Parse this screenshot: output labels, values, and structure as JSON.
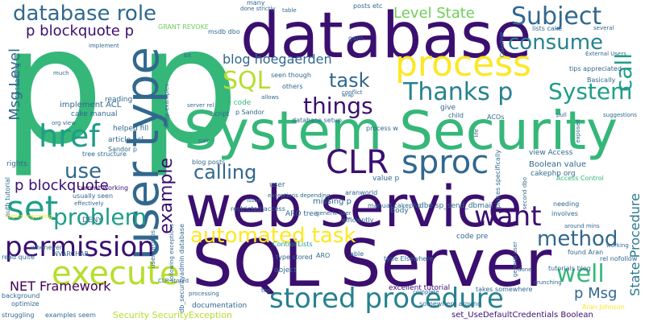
{
  "words": {
    "p_big": "p",
    "p_big2": "p",
    "database": "database",
    "system_security": "System Security",
    "web_service": "web service",
    "sql_server": "SQL Server",
    "process": "process",
    "user_type": "user type",
    "set": "set",
    "href": "href",
    "clr": "CLR",
    "sproc": "sproc",
    "execute": "execute",
    "stored_procedure": "stored procedure",
    "permission": "permission",
    "want": "want",
    "database_role": "database role",
    "subject": "Subject",
    "consume": "consume",
    "things": "things",
    "thanks_p": "Thanks p",
    "task": "task",
    "sql": "SQL",
    "system": "System",
    "call": "call",
    "automated_task": "automated task",
    "calling": "calling",
    "method": "method",
    "well": "well",
    "problem": "problem",
    "net_framework": "NET Framework",
    "use": "use",
    "p_blockquote": "p blockquote",
    "p_blockquote2": "p blockquote p",
    "example": "example",
    "level_state": "Level State",
    "blog_hoegaerden": "blog hoegaerden",
    "msg_level": "Msg Level",
    "p_msg": "p Msg",
    "state_procedure": "State Procedure",
    "security_exception": "Security SecurityException",
    "boolean_value": "Boolean value",
    "view_access": "view Access",
    "excellent_tutorial": "excellent tutorial",
    "cakephp_org": "cakephp org",
    "implement_acl": "implement ACL",
    "cake_manual": "cake manual",
    "tree_structure": "tree structure",
    "current_working": "current working",
    "aro_tree": "ARO tree",
    "missing_p": "missing p",
    "value_p": "value p",
    "code_pre": "code pre",
    "type_stored": "type stored",
    "access_control": "Access Control",
    "found_aran": "found Aran",
    "aran_johnson": "Aran Johnson",
    "set_use_default": "set_UseDefaultCredentials Boolean",
    "documentation": "documentation",
    "examples_seem": "examples seem",
    "nvarchar": "NVARCHAR",
    "deny": "DENY",
    "rights": "rights",
    "usually_seen": "usually seen",
    "whenever": "whenever",
    "read_quite": "read quite",
    "background": "background",
    "optimize": "optimize",
    "struggling": "struggling",
    "effectively": "effectively",
    "user_groups": "user groups",
    "blog_posts": "blog posts",
    "helped_fill": "helped fill",
    "article_acl": "article acl",
    "sandor_p": "Sandor p",
    "reading": "reading",
    "pre_code": "pre code",
    "script": "script",
    "p_sandor": "p Sandor",
    "database_setup": "database setup",
    "process_w": "process w",
    "give": "give",
    "child": "child",
    "acos": "ACOs",
    "pull": "pull",
    "suggestions": "suggestions",
    "tips_appreciated": "tips appreciated",
    "basically": "Basically",
    "external_users": "External Users",
    "several": "several",
    "lists_cake": "lists cake",
    "cakephp": "CakePHP",
    "gaps": "gaps",
    "grant_revoke": "GRANT REVOKE",
    "msdb_dbo": "msdb dbo",
    "implement": "implement",
    "much": "much",
    "setup_examples": "setup examples",
    "seen_though": "seen though",
    "others": "others",
    "posts_etc": "posts etc",
    "table": "table",
    "many": "many",
    "done_strictly": "done strictly",
    "conflict": "conflict",
    "body": "Body",
    "dbo_sp_send": "dbo sp_send_dbmail",
    "manual_cakephp": "manual cakephp",
    "places_specifically": "places specifically",
    "type_elsewhere": "type Elsewhere",
    "general_user": "general user",
    "tutorials_blog": "tutorials blog",
    "rel_nofollow": "rel nofollow",
    "working": "working",
    "involves": "involves",
    "needing": "needing",
    "crunching": "crunching",
    "takes_somewhere": "takes somewhere",
    "done": "done",
    "somewhere_around": "somewhere around",
    "complete": "complete",
    "aro": "ARO",
    "object": "object",
    "able": "able",
    "control_lists": "Control Lists",
    "aranworld": "aranworld",
    "efficiently": "efficiently",
    "generic_user": "generic user",
    "issue": "issue",
    "user": "user",
    "restricted_access": "restricted access",
    "top": "top",
    "processing": "processing",
    "clr_stored": "CLR stored",
    "db_securityadmin": "db_securityadmin database",
    "following_exceptions": "following exceptions",
    "cascading": "cascading",
    "org_view": "org view",
    "auth_tutorial": "auth tutorial",
    "topics_regarding": "topics regarding",
    "pair": "pair",
    "server_rel": "server rel",
    "allows": "allows",
    "wrap": "wrap",
    "bit": "bit",
    "exceptions_depending": "exceptions depending",
    "exposed": "exposed",
    "life": "life",
    "second_dbo": "second dbo",
    "around_mins": "around mins"
  }
}
